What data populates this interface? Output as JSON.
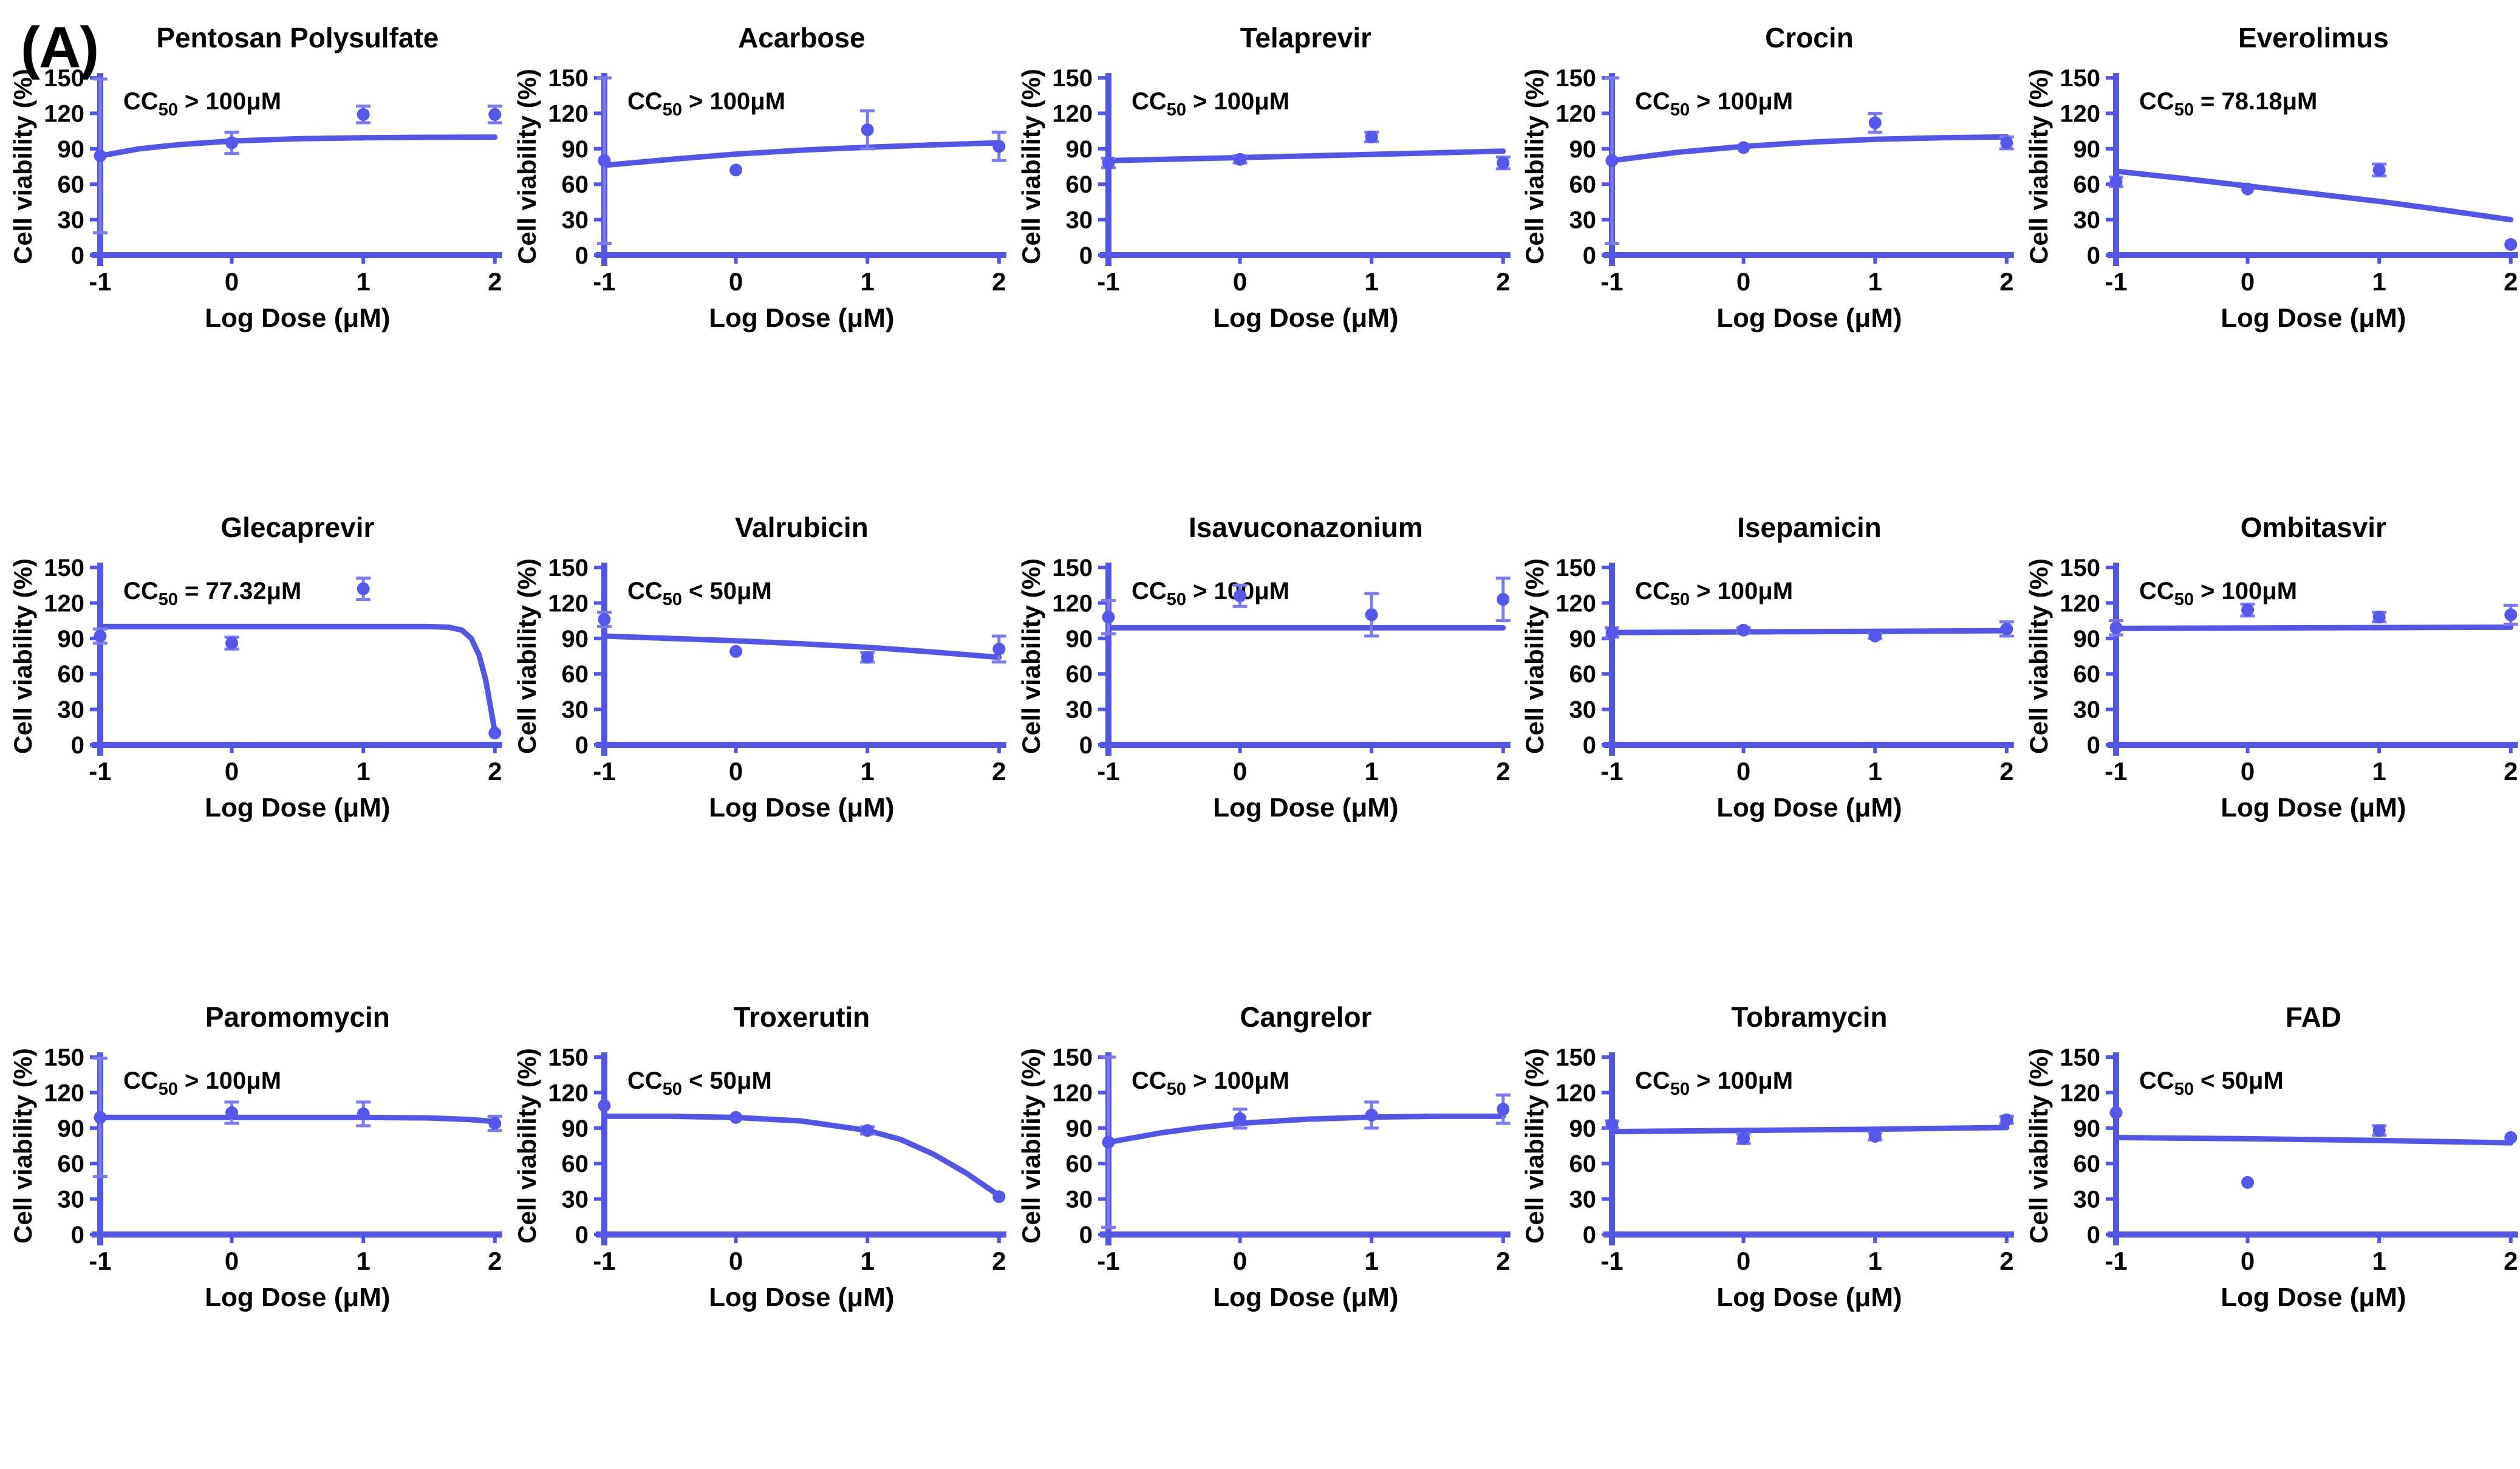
{
  "figure_label": "(A)",
  "colors": {
    "axis": "#5356E2",
    "curve": "#5356E2",
    "point": "#5457EA",
    "error_bar": "#7B7AEF",
    "text": "#000000",
    "background": "#FFFFFF"
  },
  "chart_data": {
    "layout": "grid-3x5",
    "axis": {
      "x_label": "Log Dose (μM)",
      "y_label": "Cell viability (%)",
      "x_ticks": [
        -1,
        0,
        1,
        2
      ],
      "y_ticks": [
        0,
        30,
        60,
        90,
        120,
        150
      ],
      "x_range": [
        -1,
        2
      ],
      "y_range": [
        0,
        150
      ],
      "grid": false
    },
    "panels": [
      {
        "type": "scatter",
        "title": "Pentosan Polysulfate",
        "cc50": {
          "prefix": "CC",
          "sub": "50",
          "value": "> 100μM"
        },
        "x": [
          -1,
          0,
          1,
          2
        ],
        "y": [
          84,
          95,
          119,
          119
        ],
        "yerr": [
          65,
          9,
          7,
          7
        ],
        "curve": [
          [
            -1,
            84
          ],
          [
            -0.7,
            90
          ],
          [
            -0.4,
            93.5
          ],
          [
            0,
            96.5
          ],
          [
            0.5,
            98.5
          ],
          [
            1,
            99.3
          ],
          [
            1.5,
            99.7
          ],
          [
            2,
            99.8
          ]
        ]
      },
      {
        "type": "scatter",
        "title": "Acarbose",
        "cc50": {
          "prefix": "CC",
          "sub": "50",
          "value": "> 100μM"
        },
        "x": [
          -1,
          0,
          1,
          2
        ],
        "y": [
          80,
          72,
          106,
          92
        ],
        "yerr": [
          70,
          0,
          16,
          12
        ],
        "curve": [
          [
            -1,
            76
          ],
          [
            -0.5,
            81
          ],
          [
            0,
            85.5
          ],
          [
            0.5,
            88.8
          ],
          [
            1,
            91.3
          ],
          [
            1.5,
            93.3
          ],
          [
            2,
            95
          ]
        ]
      },
      {
        "type": "scatter",
        "title": "Telaprevir",
        "cc50": {
          "prefix": "CC",
          "sub": "50",
          "value": "> 100μM"
        },
        "x": [
          -1,
          0,
          1,
          2
        ],
        "y": [
          78,
          81,
          100,
          78
        ],
        "yerr": [
          4,
          3,
          4,
          5
        ],
        "curve": [
          [
            -1,
            80
          ],
          [
            0,
            82.5
          ],
          [
            1,
            85.2
          ],
          [
            2,
            88
          ]
        ]
      },
      {
        "type": "scatter",
        "title": "Crocin",
        "cc50": {
          "prefix": "CC",
          "sub": "50",
          "value": "> 100μM"
        },
        "x": [
          -1,
          0,
          1,
          2
        ],
        "y": [
          80,
          91,
          112,
          95
        ],
        "yerr": [
          70,
          0,
          8,
          5
        ],
        "curve": [
          [
            -1,
            80
          ],
          [
            -0.5,
            87
          ],
          [
            0,
            92
          ],
          [
            0.5,
            95.5
          ],
          [
            1,
            98
          ],
          [
            1.5,
            99.3
          ],
          [
            2,
            100
          ]
        ]
      },
      {
        "type": "scatter",
        "title": "Everolimus",
        "cc50": {
          "prefix": "CC",
          "sub": "50",
          "value": "= 78.18μM"
        },
        "x": [
          -1,
          0,
          1,
          2
        ],
        "y": [
          62,
          56,
          72,
          9
        ],
        "yerr": [
          4,
          0,
          5,
          0
        ],
        "curve": [
          [
            -1,
            71
          ],
          [
            -0.5,
            65
          ],
          [
            0,
            58.5
          ],
          [
            0.5,
            52
          ],
          [
            1,
            45.5
          ],
          [
            1.5,
            38
          ],
          [
            2,
            30
          ]
        ]
      },
      {
        "type": "scatter",
        "title": "Glecaprevir",
        "cc50": {
          "prefix": "CC",
          "sub": "50",
          "value": "= 77.32μM"
        },
        "x": [
          -1,
          0,
          1,
          2
        ],
        "y": [
          92,
          86,
          132,
          10
        ],
        "yerr": [
          6,
          5,
          9,
          0
        ],
        "curve": [
          [
            -1,
            100
          ],
          [
            0,
            100
          ],
          [
            1,
            100
          ],
          [
            1.5,
            100
          ],
          [
            1.65,
            99.5
          ],
          [
            1.75,
            97
          ],
          [
            1.82,
            90
          ],
          [
            1.88,
            76
          ],
          [
            1.93,
            55
          ],
          [
            1.97,
            30
          ],
          [
            2,
            11
          ]
        ]
      },
      {
        "type": "scatter",
        "title": "Valrubicin",
        "cc50": {
          "prefix": "CC",
          "sub": "50",
          "value": "< 50μM"
        },
        "x": [
          -1,
          0,
          1,
          2
        ],
        "y": [
          106,
          79,
          74,
          81
        ],
        "yerr": [
          6,
          0,
          4,
          11
        ],
        "curve": [
          [
            -1,
            92
          ],
          [
            -0.5,
            90
          ],
          [
            0,
            88
          ],
          [
            0.5,
            85.5
          ],
          [
            1,
            82.5
          ],
          [
            1.5,
            78.5
          ],
          [
            2,
            74
          ]
        ]
      },
      {
        "type": "scatter",
        "title": "Isavuconazonium",
        "cc50": {
          "prefix": "CC",
          "sub": "50",
          "value": "> 100μM"
        },
        "x": [
          -1,
          0,
          1,
          2
        ],
        "y": [
          108,
          126,
          110,
          123
        ],
        "yerr": [
          14,
          9,
          18,
          18
        ],
        "curve": [
          [
            -1,
            99
          ],
          [
            2,
            99
          ]
        ]
      },
      {
        "type": "scatter",
        "title": "Isepamicin",
        "cc50": {
          "prefix": "CC",
          "sub": "50",
          "value": "> 100μM"
        },
        "x": [
          -1,
          0,
          1,
          2
        ],
        "y": [
          95,
          97,
          92,
          98
        ],
        "yerr": [
          4,
          2,
          2,
          6
        ],
        "curve": [
          [
            -1,
            95
          ],
          [
            2,
            96.5
          ]
        ]
      },
      {
        "type": "scatter",
        "title": "Ombitasvir",
        "cc50": {
          "prefix": "CC",
          "sub": "50",
          "value": "> 100μM"
        },
        "x": [
          -1,
          0,
          1,
          2
        ],
        "y": [
          99,
          114,
          108,
          110
        ],
        "yerr": [
          6,
          5,
          4,
          8
        ],
        "curve": [
          [
            -1,
            98.5
          ],
          [
            2,
            99.5
          ]
        ]
      },
      {
        "type": "scatter",
        "title": "Paromomycin",
        "cc50": {
          "prefix": "CC",
          "sub": "50",
          "value": "> 100μM"
        },
        "x": [
          -1,
          0,
          1,
          2
        ],
        "y": [
          99,
          103,
          102,
          94
        ],
        "yerr": [
          50,
          9,
          10,
          6
        ],
        "curve": [
          [
            -1,
            99
          ],
          [
            0,
            99
          ],
          [
            1,
            99
          ],
          [
            1.5,
            98.6
          ],
          [
            1.8,
            97.3
          ],
          [
            2,
            95.5
          ]
        ]
      },
      {
        "type": "scatter",
        "title": "Troxerutin",
        "cc50": {
          "prefix": "CC",
          "sub": "50",
          "value": "< 50μM"
        },
        "x": [
          -1,
          0,
          1,
          2
        ],
        "y": [
          109,
          99,
          88,
          32
        ],
        "yerr": [
          0,
          0,
          3,
          0
        ],
        "curve": [
          [
            -1,
            100
          ],
          [
            -0.5,
            100
          ],
          [
            0,
            99
          ],
          [
            0.5,
            96
          ],
          [
            1,
            88
          ],
          [
            1.25,
            80.5
          ],
          [
            1.5,
            68
          ],
          [
            1.75,
            52
          ],
          [
            2,
            33
          ]
        ]
      },
      {
        "type": "scatter",
        "title": "Cangrelor",
        "cc50": {
          "prefix": "CC",
          "sub": "50",
          "value": "> 100μM"
        },
        "x": [
          -1,
          0,
          1,
          2
        ],
        "y": [
          78,
          98,
          101,
          106
        ],
        "yerr": [
          72,
          8,
          11,
          12
        ],
        "curve": [
          [
            -1,
            78
          ],
          [
            -0.6,
            86
          ],
          [
            -0.3,
            90.5
          ],
          [
            0,
            94
          ],
          [
            0.5,
            97.5
          ],
          [
            1,
            99.3
          ],
          [
            1.5,
            100
          ],
          [
            2,
            100
          ]
        ]
      },
      {
        "type": "scatter",
        "title": "Tobramycin",
        "cc50": {
          "prefix": "CC",
          "sub": "50",
          "value": "> 100μM"
        },
        "x": [
          -1,
          0,
          1,
          2
        ],
        "y": [
          93,
          81,
          83,
          97
        ],
        "yerr": [
          3,
          4,
          3,
          3
        ],
        "curve": [
          [
            -1,
            87
          ],
          [
            0,
            88
          ],
          [
            1,
            89
          ],
          [
            2,
            90.5
          ]
        ]
      },
      {
        "type": "scatter",
        "title": "FAD",
        "cc50": {
          "prefix": "CC",
          "sub": "50",
          "value": "< 50μM"
        },
        "x": [
          -1,
          0,
          1,
          2
        ],
        "y": [
          103,
          44,
          88,
          82
        ],
        "yerr": [
          0,
          0,
          4,
          0
        ],
        "curve": [
          [
            -1,
            82
          ],
          [
            0,
            81
          ],
          [
            1,
            79.5
          ],
          [
            2,
            77.5
          ]
        ]
      }
    ]
  }
}
